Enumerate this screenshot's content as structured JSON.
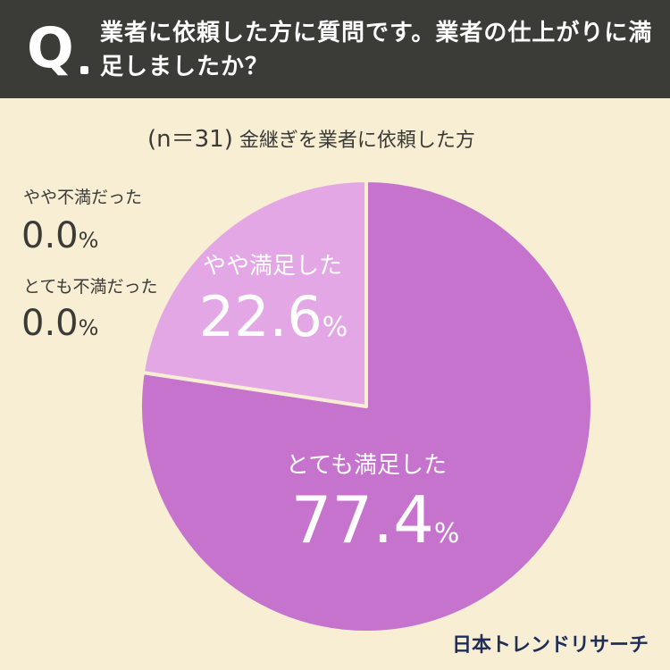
{
  "header": {
    "q": "Q",
    "question": "業者に依頼した方に質問です。業者の仕上がりに満足しましたか？"
  },
  "sample": {
    "n": "(n＝31)",
    "desc": "金継ぎを業者に依頼した方"
  },
  "colors": {
    "background": "#f7eed4",
    "header": "#3b3b37",
    "very_satisfied": "#c673cd",
    "somewhat_satisfied": "#e3a7e5",
    "brand": "#1f2d57"
  },
  "chart_data": {
    "type": "pie",
    "slices": [
      {
        "label": "とても満足した",
        "value": 77.4,
        "value_text": "77.4",
        "color": "#c673cd"
      },
      {
        "label": "やや満足した",
        "value": 22.6,
        "value_text": "22.6",
        "color": "#e3a7e5"
      },
      {
        "label": "やや不満だった",
        "value": 0.0,
        "value_text": "0.0"
      },
      {
        "label": "とても不満だった",
        "value": 0.0,
        "value_text": "0.0"
      }
    ],
    "unit": "%"
  },
  "brand": "日本トレンドリサーチ"
}
